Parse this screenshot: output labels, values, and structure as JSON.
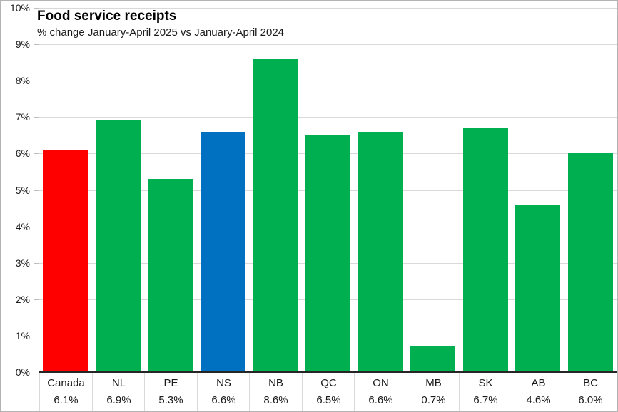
{
  "chart_data": {
    "type": "bar",
    "title": "Food service receipts",
    "subtitle": "% change January-April 2025 vs January-April 2024",
    "categories": [
      "Canada",
      "NL",
      "PE",
      "NS",
      "NB",
      "QC",
      "ON",
      "MB",
      "SK",
      "AB",
      "BC"
    ],
    "values": [
      6.1,
      6.9,
      5.3,
      6.6,
      8.6,
      6.5,
      6.6,
      0.7,
      6.7,
      4.6,
      6.0
    ],
    "value_labels": [
      "6.1%",
      "6.9%",
      "5.3%",
      "6.6%",
      "8.6%",
      "6.5%",
      "6.6%",
      "0.7%",
      "6.7%",
      "4.6%",
      "6.0%"
    ],
    "bar_colors": [
      "#ff0000",
      "#00b050",
      "#00b050",
      "#0070c0",
      "#00b050",
      "#00b050",
      "#00b050",
      "#00b050",
      "#00b050",
      "#00b050",
      "#00b050"
    ],
    "ylim": [
      0,
      10
    ],
    "y_ticks": [
      "0%",
      "1%",
      "2%",
      "3%",
      "4%",
      "5%",
      "6%",
      "7%",
      "8%",
      "9%",
      "10%"
    ],
    "grid": true,
    "legend": "none",
    "colors": {
      "canada_bar": "#ff0000",
      "nova_scotia_bar": "#0070c0",
      "default_bar": "#00b050",
      "gridline": "#d9d9d9",
      "axis_line": "#262626",
      "text": "#1a1a1a",
      "border": "#b3b3b3",
      "background": "#ffffff"
    }
  }
}
